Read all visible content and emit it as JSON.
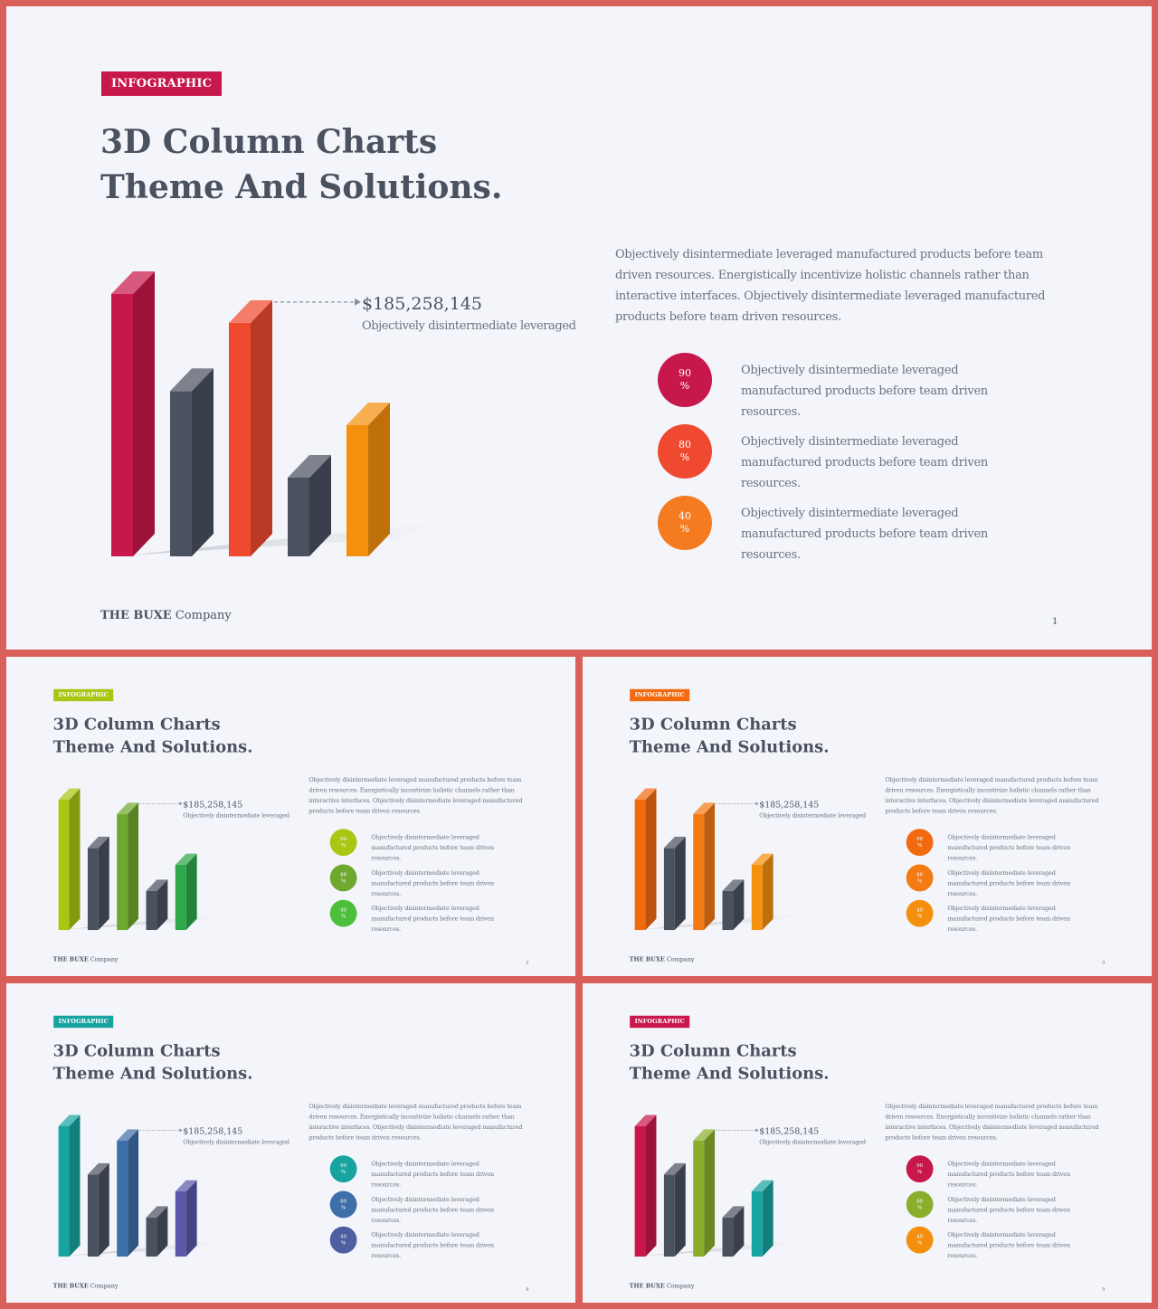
{
  "slides": [
    {
      "badge": "INFOGRAPHIC",
      "badge_color": "#c8174a",
      "title_line1": "3D Column Charts",
      "title_line2": "Theme And Solutions.",
      "highlight_value": "$185,258,145",
      "highlight_caption": "Objectively disintermediate leveraged",
      "paragraph": "Objectively disintermediate leveraged manufactured products before team driven resources. Energistically incentivize holistic channels rather than interactive interfaces. Objectively disintermediate leveraged manufactured products before team driven resources.",
      "stats": [
        {
          "value": "90",
          "unit": "%",
          "text": "Objectively disintermediate leveraged manufactured products before team driven resources.",
          "color": "#c8174a"
        },
        {
          "value": "80",
          "unit": "%",
          "text": "Objectively disintermediate leveraged manufactured products before team driven resources.",
          "color": "#ef4a2f"
        },
        {
          "value": "40",
          "unit": "%",
          "text": "Objectively disintermediate leveraged manufactured products before team driven resources.",
          "color": "#f47b20"
        }
      ],
      "footer_brand": "THE BUXE",
      "footer_company": "Company",
      "page": "1"
    },
    {
      "badge": "INFOGRAPHIC",
      "badge_color": "#a8c614",
      "title_line1": "3D Column Charts",
      "title_line2": "Theme And Solutions.",
      "highlight_value": "$185,258,145",
      "highlight_caption": "Objectively disintermediate leveraged",
      "paragraph": "Objectively disintermediate leveraged manufactured products before team driven resources. Energistically incentivize holistic channels rather than interactive interfaces. Objectively disintermediate leveraged manufactured products before team driven resources.",
      "stats": [
        {
          "value": "90",
          "unit": "%",
          "text": "Objectively disintermediate leveraged manufactured products before team driven resources.",
          "color": "#a8c614"
        },
        {
          "value": "80",
          "unit": "%",
          "text": "Objectively disintermediate leveraged manufactured products before team driven resources.",
          "color": "#6fa82e"
        },
        {
          "value": "40",
          "unit": "%",
          "text": "Objectively disintermediate leveraged manufactured products before team driven resources.",
          "color": "#4dbf3b"
        }
      ],
      "footer_brand": "THE BUXE",
      "footer_company": "Company",
      "page": "2"
    },
    {
      "badge": "INFOGRAPHIC",
      "badge_color": "#f26a10",
      "title_line1": "3D Column Charts",
      "title_line2": "Theme And Solutions.",
      "highlight_value": "$185,258,145",
      "highlight_caption": "Objectively disintermediate leveraged",
      "paragraph": "Objectively disintermediate leveraged manufactured products before team driven resources. Energistically incentivize holistic channels rather than interactive interfaces. Objectively disintermediate leveraged manufactured products before team driven resources.",
      "stats": [
        {
          "value": "90",
          "unit": "%",
          "text": "Objectively disintermediate leveraged manufactured products before team driven resources.",
          "color": "#f26a10"
        },
        {
          "value": "80",
          "unit": "%",
          "text": "Objectively disintermediate leveraged manufactured products before team driven resources.",
          "color": "#f47a14"
        },
        {
          "value": "40",
          "unit": "%",
          "text": "Objectively disintermediate leveraged manufactured products before team driven resources.",
          "color": "#f5900e"
        }
      ],
      "footer_brand": "THE BUXE",
      "footer_company": "Company",
      "page": "3"
    },
    {
      "badge": "INFOGRAPHIC",
      "badge_color": "#17a3a0",
      "title_line1": "3D Column Charts",
      "title_line2": "Theme And Solutions.",
      "highlight_value": "$185,258,145",
      "highlight_caption": "Objectively disintermediate leveraged",
      "paragraph": "Objectively disintermediate leveraged manufactured products before team driven resources. Energistically incentivize holistic channels rather than interactive interfaces. Objectively disintermediate leveraged manufactured products before team driven resources.",
      "stats": [
        {
          "value": "90",
          "unit": "%",
          "text": "Objectively disintermediate leveraged manufactured products before team driven resources.",
          "color": "#17a3a0"
        },
        {
          "value": "80",
          "unit": "%",
          "text": "Objectively disintermediate leveraged manufactured products before team driven resources.",
          "color": "#3f6fa8"
        },
        {
          "value": "40",
          "unit": "%",
          "text": "Objectively disintermediate leveraged manufactured products before team driven resources.",
          "color": "#4c5fa0"
        }
      ],
      "footer_brand": "THE BUXE",
      "footer_company": "Company",
      "page": "4"
    },
    {
      "badge": "INFOGRAPHIC",
      "badge_color": "#c8174a",
      "title_line1": "3D Column Charts",
      "title_line2": "Theme And Solutions.",
      "highlight_value": "$185,258,145",
      "highlight_caption": "Objectively disintermediate leveraged",
      "paragraph": "Objectively disintermediate leveraged manufactured products before team driven resources. Energistically incentivize holistic channels rather than interactive interfaces. Objectively disintermediate leveraged manufactured products before team driven resources.",
      "stats": [
        {
          "value": "90",
          "unit": "%",
          "text": "Objectively disintermediate leveraged manufactured products before team driven resources.",
          "color": "#c8174a"
        },
        {
          "value": "80",
          "unit": "%",
          "text": "Objectively disintermediate leveraged manufactured products before team driven resources.",
          "color": "#8aae2c"
        },
        {
          "value": "40",
          "unit": "%",
          "text": "Objectively disintermediate leveraged manufactured products before team driven resources.",
          "color": "#f5900e"
        }
      ],
      "footer_brand": "THE BUXE",
      "footer_company": "Company",
      "page": "5"
    }
  ],
  "chart_data": [
    {
      "type": "bar",
      "values": [
        100,
        63,
        89,
        30,
        50
      ],
      "colors": [
        "#c8174a",
        "#4a5260",
        "#ef4a2f",
        "#4a5260",
        "#f5900e"
      ],
      "ylim": [
        0,
        100
      ],
      "highlight_index": 2
    },
    {
      "type": "bar",
      "values": [
        100,
        63,
        89,
        30,
        50
      ],
      "colors": [
        "#a8c614",
        "#4a5260",
        "#6fa82e",
        "#4a5260",
        "#2ea84a"
      ],
      "ylim": [
        0,
        100
      ],
      "highlight_index": 2
    },
    {
      "type": "bar",
      "values": [
        100,
        63,
        89,
        30,
        50
      ],
      "colors": [
        "#f26a10",
        "#4a5260",
        "#f47a14",
        "#4a5260",
        "#f5900e"
      ],
      "ylim": [
        0,
        100
      ],
      "highlight_index": 2
    },
    {
      "type": "bar",
      "values": [
        100,
        63,
        89,
        30,
        50
      ],
      "colors": [
        "#17a3a0",
        "#4a5260",
        "#3f6fa8",
        "#4a5260",
        "#5a58a8"
      ],
      "ylim": [
        0,
        100
      ],
      "highlight_index": 2
    },
    {
      "type": "bar",
      "values": [
        100,
        63,
        89,
        30,
        50
      ],
      "colors": [
        "#c8174a",
        "#4a5260",
        "#8aae2c",
        "#4a5260",
        "#17a3a0"
      ],
      "ylim": [
        0,
        100
      ],
      "highlight_index": 2
    }
  ]
}
